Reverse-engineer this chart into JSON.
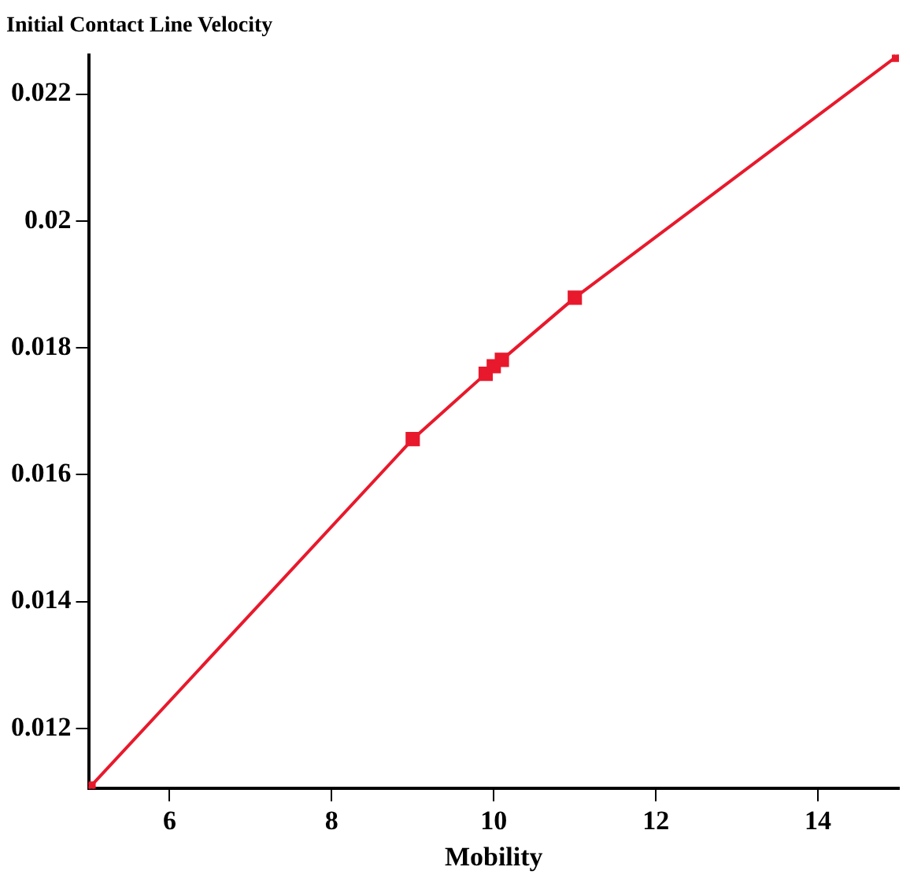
{
  "chart_data": {
    "type": "line",
    "title": "Initial Contact Line Velocity",
    "xlabel": "Mobility",
    "x": [
      5,
      9,
      9.9,
      10,
      10.1,
      11,
      15
    ],
    "series": [
      {
        "color": "#e8192c",
        "values": [
          0.01105,
          0.01656,
          0.01759,
          0.01771,
          0.01781,
          0.01879,
          0.02262
        ]
      }
    ],
    "xlim": [
      5,
      15
    ],
    "xticks": [
      6,
      8,
      10,
      12,
      14
    ],
    "ylim": [
      0.01105,
      0.02262
    ],
    "yticks": [
      0.012,
      0.014,
      0.016,
      0.018,
      0.02,
      0.022
    ],
    "grid": false,
    "legend": false,
    "marker": "square",
    "line_style": "solid"
  }
}
